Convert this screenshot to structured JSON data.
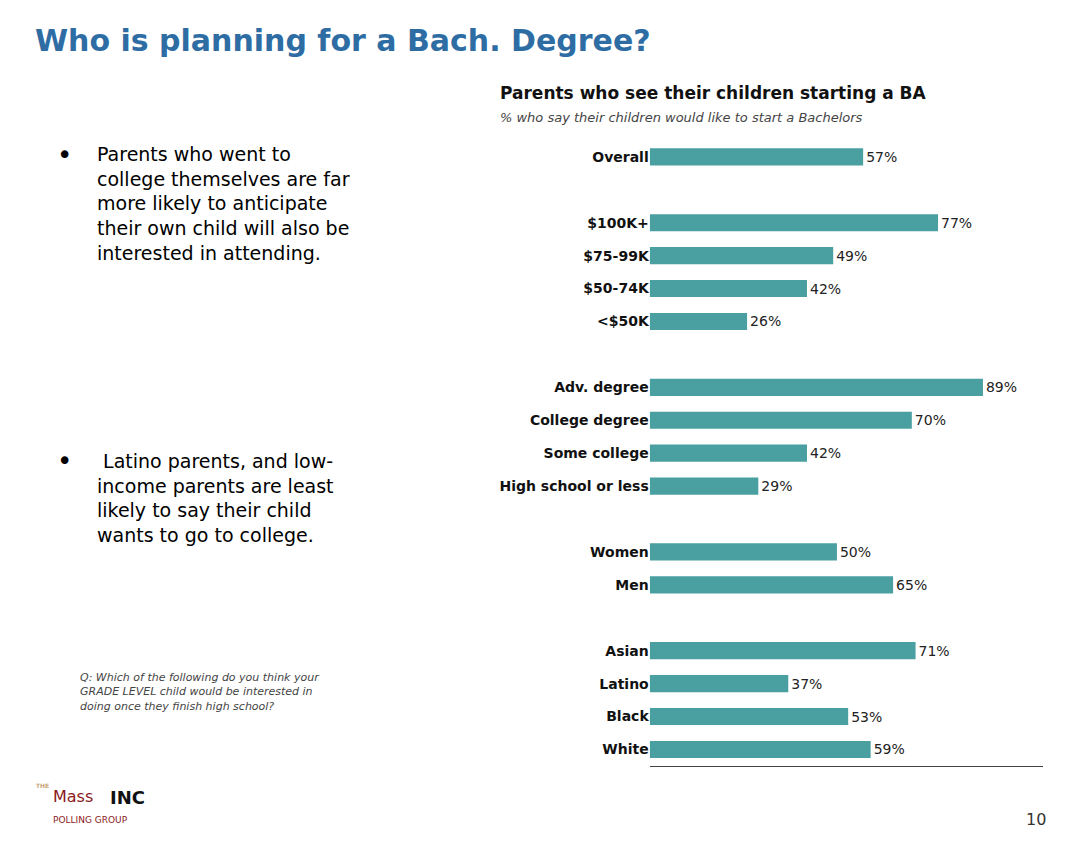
{
  "chart_data": {
    "type": "bar",
    "orientation": "horizontal",
    "title": "Parents who see their children starting a BA",
    "subtitle": "% who say their children would like to start a Bachelors",
    "categories": [
      "Overall",
      null,
      "$100K+",
      "$75-99K",
      "$50-74K",
      "<$50K",
      null,
      "Adv. degree",
      "College degree",
      "Some college",
      "High school or less",
      null,
      "Women",
      "Men",
      null,
      "Asian",
      "Latino",
      "Black",
      "White"
    ],
    "values": [
      57,
      null,
      77,
      49,
      42,
      26,
      null,
      89,
      70,
      42,
      29,
      null,
      50,
      65,
      null,
      71,
      37,
      53,
      59
    ],
    "value_labels": [
      "57%",
      null,
      "77%",
      "49%",
      "42%",
      "26%",
      null,
      "89%",
      "70%",
      "42%",
      "29%",
      null,
      "50%",
      "65%",
      null,
      "71%",
      "37%",
      "53%",
      "59%"
    ],
    "color": "#4A9FA0",
    "xlim": [
      0,
      105
    ],
    "data_labels": true,
    "tick_labels": "y",
    "grid": false,
    "annotations": [
      "Who is planning for a Bach. Degree?",
      "•",
      "Parents who went to\ncollege themselves are far\nmore likely to anticipate\ntheir own child will also be\ninterested in attending.",
      "•",
      " Latino parents, and low-\nincome parents are least\nlikely to say their child\nwants to go to college.",
      "Q: Which of the following do you think your\nGRADE LEVEL child would be interested in\ndoing once they finish high school?",
      "10",
      "THE",
      "Mass",
      "INC",
      "POLLING GROUP"
    ]
  }
}
